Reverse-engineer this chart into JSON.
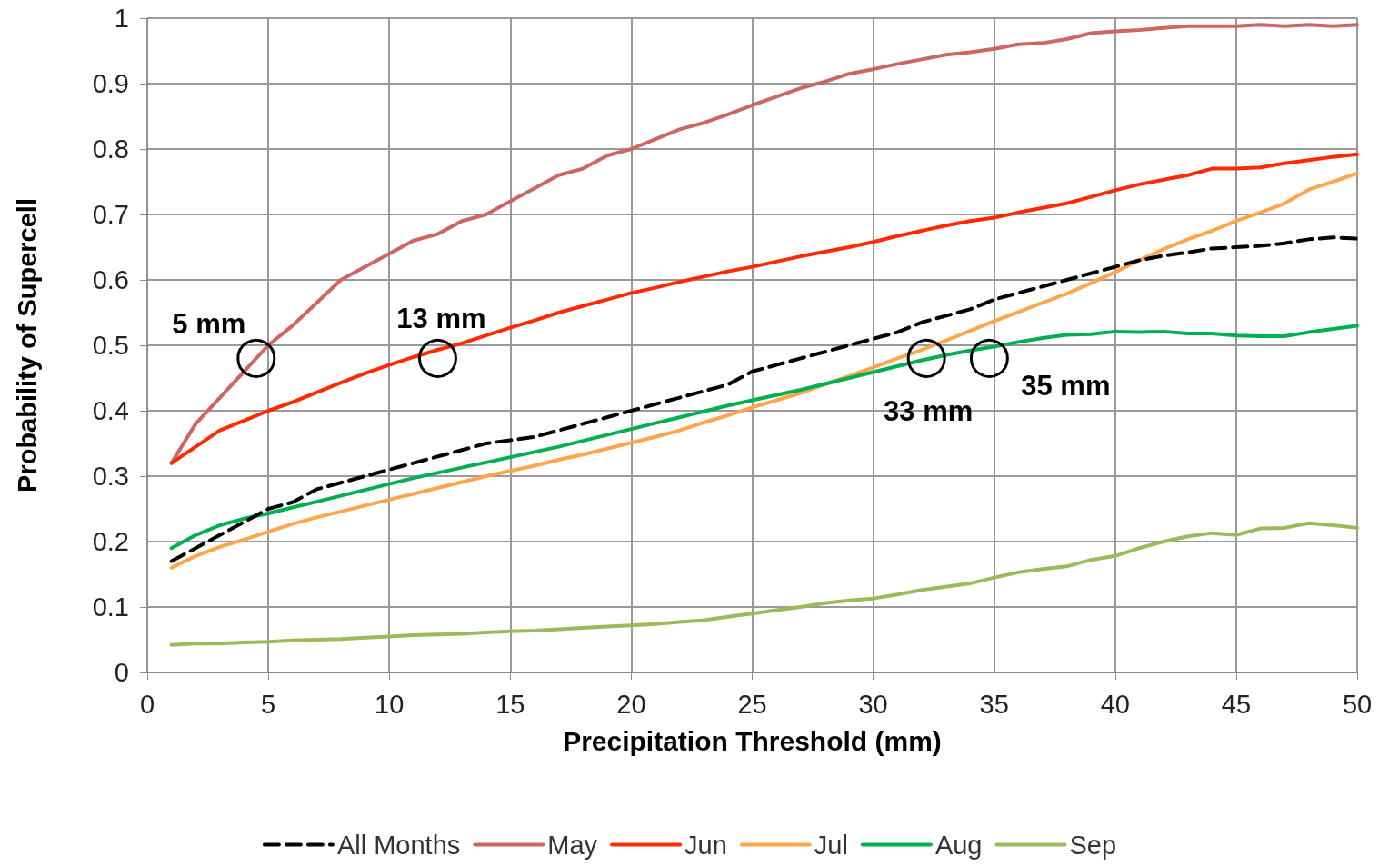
{
  "chart_data": {
    "type": "line",
    "xlabel": "Precipitation Threshold (mm)",
    "ylabel": "Probability of Supercell",
    "x": [
      1,
      2,
      3,
      4,
      5,
      6,
      7,
      8,
      9,
      10,
      11,
      12,
      13,
      14,
      15,
      16,
      17,
      18,
      19,
      20,
      21,
      22,
      23,
      24,
      25,
      26,
      27,
      28,
      29,
      30,
      31,
      32,
      33,
      34,
      35,
      36,
      37,
      38,
      39,
      40,
      41,
      42,
      43,
      44,
      45,
      46,
      47,
      48,
      49,
      50
    ],
    "xlim": [
      0,
      50
    ],
    "xticks": [
      0,
      5,
      10,
      15,
      20,
      25,
      30,
      35,
      40,
      45,
      50
    ],
    "ylim": [
      0,
      1
    ],
    "yticks": [
      0,
      0.1,
      0.2,
      0.3,
      0.4,
      0.5,
      0.6,
      0.7,
      0.8,
      0.9,
      1
    ],
    "grid": true,
    "legend": "bottom",
    "marker": "none",
    "series": [
      {
        "name": "All Months",
        "color": "#000000",
        "line_style": "dashed",
        "values": [
          0.17,
          0.19,
          0.21,
          0.23,
          0.25,
          0.26,
          0.28,
          0.29,
          0.3,
          0.31,
          0.32,
          0.33,
          0.34,
          0.35,
          0.355,
          0.36,
          0.37,
          0.38,
          0.39,
          0.4,
          0.41,
          0.42,
          0.43,
          0.44,
          0.46,
          0.47,
          0.48,
          0.49,
          0.5,
          0.51,
          0.52,
          0.535,
          0.545,
          0.555,
          0.57,
          0.58,
          0.59,
          0.6,
          0.61,
          0.62,
          0.63,
          0.637,
          0.642,
          0.648,
          0.65,
          0.652,
          0.656,
          0.662,
          0.665,
          0.663
        ]
      },
      {
        "name": "May",
        "color": "#cc6660",
        "values": [
          0.32,
          0.38,
          0.42,
          0.46,
          0.5,
          0.53,
          0.565,
          0.6,
          0.62,
          0.64,
          0.66,
          0.67,
          0.69,
          0.7,
          0.72,
          0.74,
          0.76,
          0.77,
          0.79,
          0.8,
          0.815,
          0.83,
          0.84,
          0.853,
          0.867,
          0.88,
          0.893,
          0.903,
          0.915,
          0.922,
          0.93,
          0.937,
          0.944,
          0.948,
          0.953,
          0.96,
          0.962,
          0.968,
          0.977,
          0.98,
          0.982,
          0.985,
          0.988,
          0.988,
          0.988,
          0.99,
          0.988,
          0.99,
          0.988,
          0.99
        ]
      },
      {
        "name": "Jun",
        "color": "#ff2a00",
        "values": [
          0.32,
          0.345,
          0.37,
          0.385,
          0.4,
          0.413,
          0.428,
          0.443,
          0.457,
          0.47,
          0.482,
          0.493,
          0.503,
          0.515,
          0.527,
          0.538,
          0.55,
          0.56,
          0.57,
          0.58,
          0.588,
          0.597,
          0.605,
          0.613,
          0.62,
          0.628,
          0.636,
          0.643,
          0.65,
          0.658,
          0.667,
          0.675,
          0.683,
          0.69,
          0.695,
          0.703,
          0.71,
          0.717,
          0.727,
          0.737,
          0.746,
          0.753,
          0.76,
          0.77,
          0.77,
          0.772,
          0.778,
          0.783,
          0.788,
          0.792
        ]
      },
      {
        "name": "Jul",
        "color": "#ffa64d",
        "values": [
          0.16,
          0.178,
          0.192,
          0.203,
          0.215,
          0.227,
          0.237,
          0.246,
          0.255,
          0.264,
          0.273,
          0.282,
          0.291,
          0.3,
          0.308,
          0.316,
          0.325,
          0.333,
          0.342,
          0.351,
          0.36,
          0.37,
          0.382,
          0.393,
          0.405,
          0.416,
          0.427,
          0.44,
          0.453,
          0.466,
          0.48,
          0.493,
          0.507,
          0.522,
          0.537,
          0.551,
          0.565,
          0.579,
          0.595,
          0.612,
          0.63,
          0.647,
          0.662,
          0.675,
          0.69,
          0.703,
          0.717,
          0.738,
          0.75,
          0.763
        ]
      },
      {
        "name": "Aug",
        "color": "#00b050",
        "values": [
          0.19,
          0.21,
          0.225,
          0.235,
          0.243,
          0.252,
          0.261,
          0.27,
          0.279,
          0.288,
          0.297,
          0.305,
          0.313,
          0.321,
          0.329,
          0.337,
          0.345,
          0.354,
          0.363,
          0.372,
          0.381,
          0.39,
          0.399,
          0.408,
          0.416,
          0.424,
          0.432,
          0.441,
          0.45,
          0.459,
          0.468,
          0.477,
          0.485,
          0.492,
          0.498,
          0.505,
          0.511,
          0.516,
          0.517,
          0.521,
          0.52,
          0.521,
          0.518,
          0.518,
          0.515,
          0.514,
          0.514,
          0.52,
          0.525,
          0.53
        ]
      },
      {
        "name": "Sep",
        "color": "#9bbb59",
        "values": [
          0.042,
          0.044,
          0.044,
          0.046,
          0.047,
          0.049,
          0.05,
          0.051,
          0.053,
          0.055,
          0.057,
          0.058,
          0.059,
          0.061,
          0.063,
          0.064,
          0.066,
          0.068,
          0.07,
          0.072,
          0.074,
          0.077,
          0.08,
          0.085,
          0.09,
          0.095,
          0.1,
          0.106,
          0.11,
          0.113,
          0.119,
          0.126,
          0.131,
          0.136,
          0.145,
          0.153,
          0.158,
          0.162,
          0.172,
          0.178,
          0.19,
          0.2,
          0.208,
          0.213,
          0.21,
          0.22,
          0.221,
          0.228,
          0.225,
          0.221
        ]
      }
    ],
    "annotations": [
      {
        "text": "5 mm",
        "x": 4.5,
        "y": 0.48
      },
      {
        "text": "13 mm",
        "x": 12,
        "y": 0.48
      },
      {
        "text": "33 mm",
        "x": 32.2,
        "y": 0.48
      },
      {
        "text": "35 mm",
        "x": 34.8,
        "y": 0.48
      }
    ]
  }
}
